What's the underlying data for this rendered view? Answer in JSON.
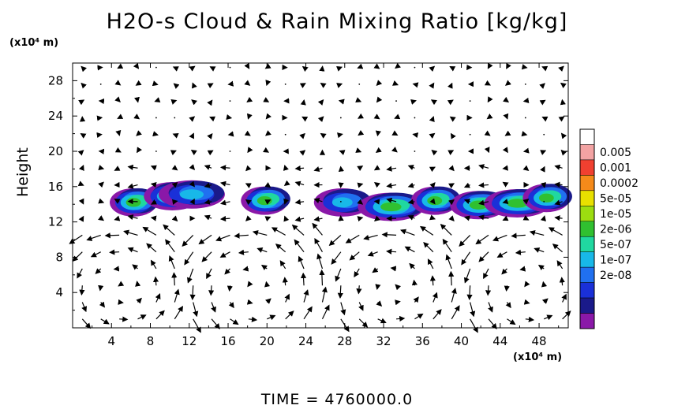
{
  "chart_data": {
    "type": "heatmap",
    "title": "H2O-s Cloud & Rain Mixing Ratio [kg/kg]",
    "ylabel": "Height",
    "x_unit": "(x10⁴ m)",
    "y_unit": "(x10⁴ m)",
    "xlim": [
      0,
      51
    ],
    "ylim": [
      0,
      30
    ],
    "x_ticks": [
      4,
      8,
      12,
      16,
      20,
      24,
      28,
      32,
      36,
      40,
      44,
      48
    ],
    "y_ticks": [
      4,
      8,
      12,
      16,
      20,
      24,
      28
    ],
    "time_label": "TIME  =  4760000.0",
    "colorbar": {
      "labels": [
        "0.005",
        "0.001",
        "0.0002",
        "5e-05",
        "1e-05",
        "2e-06",
        "5e-07",
        "1e-07",
        "2e-08"
      ],
      "colors": [
        "#ffffff",
        "#f3a3a3",
        "#f04030",
        "#f58a1a",
        "#e8e000",
        "#9cdd10",
        "#30c030",
        "#20d8a0",
        "#18b8e8",
        "#2070f0",
        "#1a30d8",
        "#1a1a8a",
        "#8a18a8"
      ]
    },
    "cloud_clusters": [
      {
        "x": 6.5,
        "y": 14.3,
        "level": "1e-05"
      },
      {
        "x": 10.5,
        "y": 15.0,
        "level": "2e-06"
      },
      {
        "x": 12.5,
        "y": 15.2,
        "level": "5e-07"
      },
      {
        "x": 20.0,
        "y": 14.5,
        "level": "2e-06"
      },
      {
        "x": 28.0,
        "y": 14.3,
        "level": "5e-07"
      },
      {
        "x": 33.0,
        "y": 13.8,
        "level": "1e-05"
      },
      {
        "x": 37.5,
        "y": 14.5,
        "level": "1e-05"
      },
      {
        "x": 42.0,
        "y": 14.0,
        "level": "2e-06"
      },
      {
        "x": 46.0,
        "y": 14.2,
        "level": "1e-05"
      },
      {
        "x": 49.0,
        "y": 14.8,
        "level": "2e-06"
      }
    ]
  }
}
